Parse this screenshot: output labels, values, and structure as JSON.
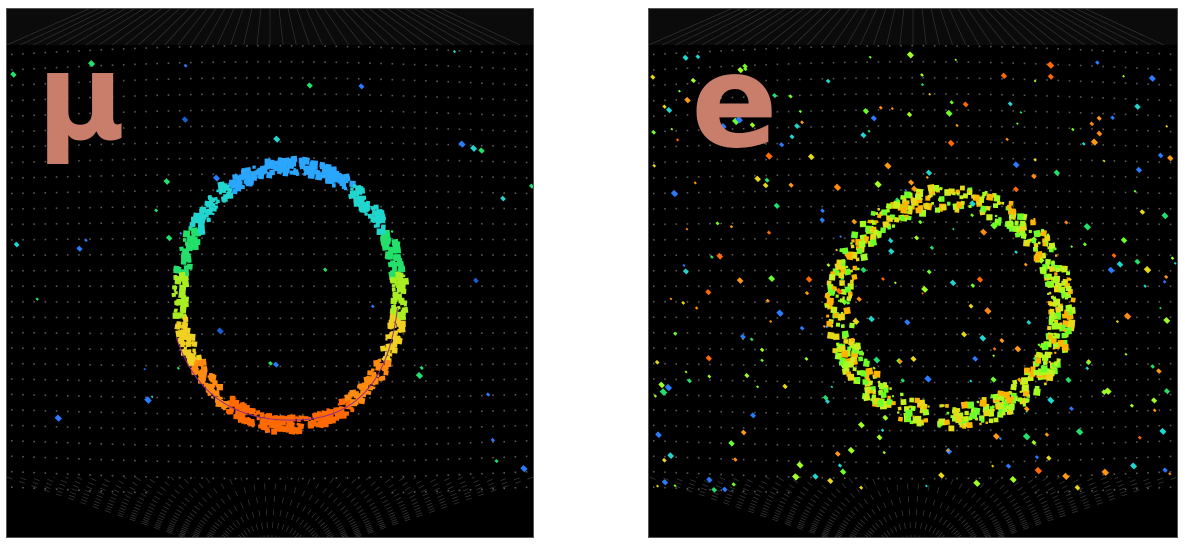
{
  "panels": [
    {
      "id": "mu",
      "label": "μ",
      "ring_color_scheme": "blue-green-yellow-orange"
    },
    {
      "id": "e",
      "label": "e",
      "ring_color_scheme": "green-yellow"
    }
  ],
  "colors": {
    "background": "#000000",
    "label": "#c97e6c",
    "pmt_grid": "#555555"
  }
}
